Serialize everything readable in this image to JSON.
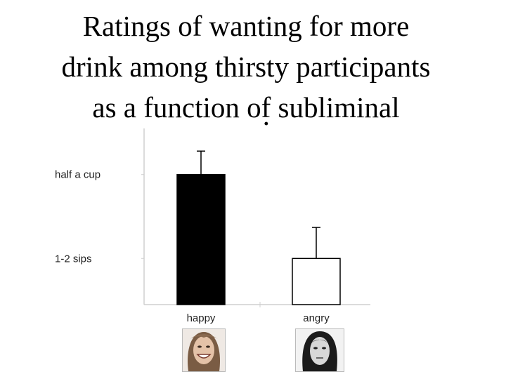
{
  "title": "Ratings of wanting for more\ndrink among thirsty participants\nas a function of subliminal",
  "chart_data": {
    "type": "bar",
    "categories": [
      "happy",
      "angry"
    ],
    "values": [
      2.0,
      1.0
    ],
    "error_upper": [
      2.28,
      1.37
    ],
    "ytick_values": [
      1,
      2
    ],
    "ytick_labels": [
      "1-2 sips",
      "half a cup"
    ],
    "ylim": [
      0.45,
      2.55
    ],
    "bar_colors": [
      "#000000",
      "#ffffff"
    ],
    "grid": false,
    "title": "",
    "xlabel": "",
    "ylabel": ""
  },
  "images": {
    "happy_face": "smiling-face-photo",
    "angry_face": "neutral-face-photo"
  }
}
